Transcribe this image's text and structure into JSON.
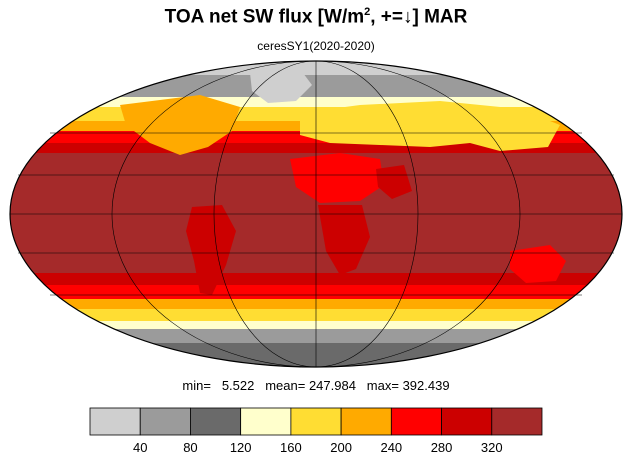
{
  "header": {
    "title_main": "TOA net SW flux [W/m",
    "title_sup": "2",
    "title_tail": ", +=↓]  MAR",
    "subtitle": "ceresSY1(2020-2020)"
  },
  "stats": {
    "min_label": "min=",
    "min_value": "5.522",
    "mean_label": "mean=",
    "mean_value": "247.984",
    "max_label": "max=",
    "max_value": "392.439"
  },
  "colorbar": {
    "colors": [
      "#cfcfcf",
      "#9b9b9b",
      "#6a6a6a",
      "#ffffcc",
      "#ffdd33",
      "#ffaa00",
      "#ff0000",
      "#cc0000",
      "#a52a2a"
    ],
    "ticks": [
      "40",
      "80",
      "120",
      "160",
      "200",
      "240",
      "280",
      "320"
    ]
  },
  "map": {
    "projection": "Mollweide",
    "band_colors": {
      "gray_light": "#cfcfcf",
      "gray_mid": "#9b9b9b",
      "gray_dark": "#6a6a6a",
      "cream": "#ffffcc",
      "yellow": "#ffdd33",
      "orange": "#ffaa00",
      "red": "#ff0000",
      "dark_red": "#cc0000",
      "brown": "#a52a2a"
    }
  }
}
